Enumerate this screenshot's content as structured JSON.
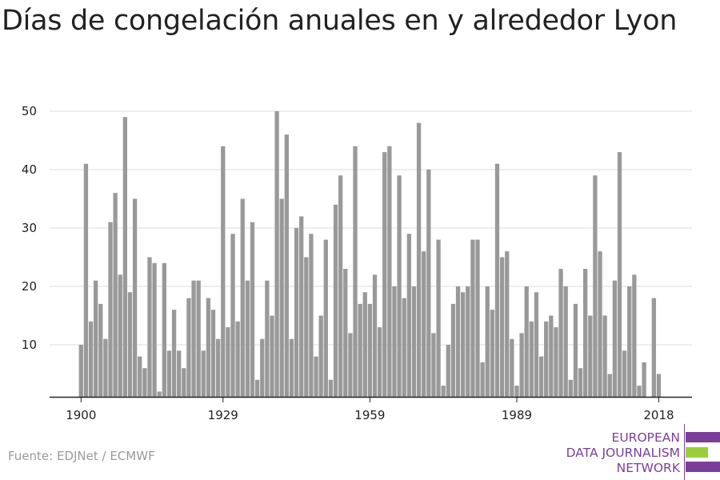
{
  "title": "Días de congelación anuales en y alrededor Lyon",
  "source": "Fuente: EDJNet / ECMWF",
  "logo": {
    "lines": [
      "EUROPEAN",
      "DATA JOURNALISM",
      "NETWORK"
    ],
    "colors": {
      "purple": "#7b3f99",
      "green": "#9bcf3a"
    }
  },
  "colors": {
    "bar": "#999999",
    "grid": "#dddddd",
    "axis": "#222222"
  },
  "chart_data": {
    "type": "bar",
    "title": "Días de congelación anuales en y alrededor Lyon",
    "xlabel": "",
    "ylabel": "",
    "x_ticks": [
      1900,
      1929,
      1959,
      1989,
      2018
    ],
    "y_ticks": [
      10,
      20,
      30,
      40,
      50
    ],
    "ylim": [
      1,
      50
    ],
    "grid": true,
    "categories": [
      1900,
      1901,
      1902,
      1903,
      1904,
      1905,
      1906,
      1907,
      1908,
      1909,
      1910,
      1911,
      1912,
      1913,
      1914,
      1915,
      1916,
      1917,
      1918,
      1919,
      1920,
      1921,
      1922,
      1923,
      1924,
      1925,
      1926,
      1927,
      1928,
      1929,
      1930,
      1931,
      1932,
      1933,
      1934,
      1935,
      1936,
      1937,
      1938,
      1939,
      1940,
      1941,
      1942,
      1943,
      1944,
      1945,
      1946,
      1947,
      1948,
      1949,
      1950,
      1951,
      1952,
      1953,
      1954,
      1955,
      1956,
      1957,
      1958,
      1959,
      1960,
      1961,
      1962,
      1963,
      1964,
      1965,
      1966,
      1967,
      1968,
      1969,
      1970,
      1971,
      1972,
      1973,
      1974,
      1975,
      1976,
      1977,
      1978,
      1979,
      1980,
      1981,
      1982,
      1983,
      1984,
      1985,
      1986,
      1987,
      1988,
      1989,
      1990,
      1991,
      1992,
      1993,
      1994,
      1995,
      1996,
      1997,
      1998,
      1999,
      2000,
      2001,
      2002,
      2003,
      2004,
      2005,
      2006,
      2007,
      2008,
      2009,
      2010,
      2011,
      2012,
      2013,
      2014,
      2015,
      2016,
      2017,
      2018
    ],
    "values": [
      10,
      41,
      14,
      21,
      17,
      11,
      31,
      36,
      22,
      49,
      19,
      35,
      8,
      6,
      25,
      24,
      2,
      24,
      9,
      16,
      9,
      6,
      18,
      21,
      21,
      9,
      18,
      16,
      11,
      44,
      13,
      29,
      14,
      35,
      21,
      31,
      4,
      11,
      21,
      15,
      50,
      35,
      46,
      11,
      30,
      32,
      25,
      29,
      8,
      15,
      28,
      4,
      34,
      39,
      23,
      12,
      44,
      17,
      19,
      17,
      22,
      13,
      43,
      44,
      20,
      39,
      18,
      29,
      20,
      48,
      26,
      40,
      12,
      28,
      3,
      10,
      17,
      20,
      19,
      20,
      28,
      28,
      7,
      20,
      16,
      41,
      25,
      26,
      11,
      3,
      12,
      20,
      14,
      19,
      8,
      14,
      15,
      13,
      23,
      20,
      4,
      17,
      6,
      23,
      15,
      39,
      26,
      15,
      5,
      21,
      43,
      9,
      20,
      22,
      3,
      7,
      1,
      18,
      5
    ]
  }
}
